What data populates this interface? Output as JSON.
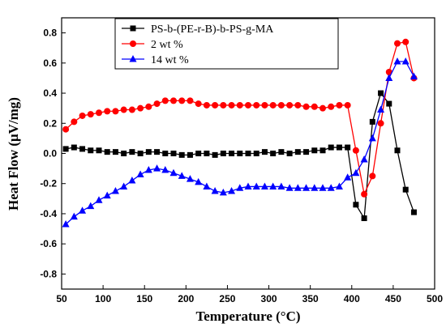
{
  "chart_data": {
    "type": "line",
    "title": "",
    "xlabel": "Temperature (°C)",
    "ylabel": "Heat Flow (μV/mg)",
    "xlim": [
      50,
      500
    ],
    "ylim": [
      -0.9,
      0.9
    ],
    "xticks": [
      "50",
      "100",
      "150",
      "200",
      "250",
      "300",
      "350",
      "400",
      "450",
      "500"
    ],
    "yticks": [
      "0.8",
      "0.6",
      "0.4",
      "0.2",
      "0.0",
      "-0.2",
      "-0.4",
      "-0.6",
      "-0.8"
    ],
    "grid": false,
    "legend_position": "top-left",
    "series": [
      {
        "name": "PS-b-(PE-r-B)-b-PS-g-MA",
        "color": "#000000",
        "marker": "square",
        "points": [
          [
            55,
            0.03
          ],
          [
            65,
            0.04
          ],
          [
            75,
            0.03
          ],
          [
            85,
            0.02
          ],
          [
            95,
            0.02
          ],
          [
            105,
            0.01
          ],
          [
            115,
            0.01
          ],
          [
            125,
            0.0
          ],
          [
            135,
            0.01
          ],
          [
            145,
            0.0
          ],
          [
            155,
            0.01
          ],
          [
            165,
            0.01
          ],
          [
            175,
            0.0
          ],
          [
            185,
            0.0
          ],
          [
            195,
            -0.01
          ],
          [
            205,
            -0.01
          ],
          [
            215,
            0.0
          ],
          [
            225,
            0.0
          ],
          [
            235,
            -0.01
          ],
          [
            245,
            0.0
          ],
          [
            255,
            0.0
          ],
          [
            265,
            0.0
          ],
          [
            275,
            0.0
          ],
          [
            285,
            0.0
          ],
          [
            295,
            0.01
          ],
          [
            305,
            0.0
          ],
          [
            315,
            0.01
          ],
          [
            325,
            0.0
          ],
          [
            335,
            0.01
          ],
          [
            345,
            0.01
          ],
          [
            355,
            0.02
          ],
          [
            365,
            0.02
          ],
          [
            375,
            0.04
          ],
          [
            385,
            0.04
          ],
          [
            395,
            0.04
          ],
          [
            405,
            -0.34
          ],
          [
            415,
            -0.43
          ],
          [
            425,
            0.21
          ],
          [
            435,
            0.4
          ],
          [
            445,
            0.33
          ],
          [
            455,
            0.02
          ],
          [
            465,
            -0.24
          ],
          [
            475,
            -0.39
          ]
        ]
      },
      {
        "name": "2 wt %",
        "color": "#ff0000",
        "marker": "circle",
        "points": [
          [
            55,
            0.16
          ],
          [
            65,
            0.21
          ],
          [
            75,
            0.25
          ],
          [
            85,
            0.26
          ],
          [
            95,
            0.27
          ],
          [
            105,
            0.28
          ],
          [
            115,
            0.28
          ],
          [
            125,
            0.29
          ],
          [
            135,
            0.29
          ],
          [
            145,
            0.3
          ],
          [
            155,
            0.31
          ],
          [
            165,
            0.33
          ],
          [
            175,
            0.35
          ],
          [
            185,
            0.35
          ],
          [
            195,
            0.35
          ],
          [
            205,
            0.35
          ],
          [
            215,
            0.33
          ],
          [
            225,
            0.32
          ],
          [
            235,
            0.32
          ],
          [
            245,
            0.32
          ],
          [
            255,
            0.32
          ],
          [
            265,
            0.32
          ],
          [
            275,
            0.32
          ],
          [
            285,
            0.32
          ],
          [
            295,
            0.32
          ],
          [
            305,
            0.32
          ],
          [
            315,
            0.32
          ],
          [
            325,
            0.32
          ],
          [
            335,
            0.32
          ],
          [
            345,
            0.31
          ],
          [
            355,
            0.31
          ],
          [
            365,
            0.3
          ],
          [
            375,
            0.31
          ],
          [
            385,
            0.32
          ],
          [
            395,
            0.32
          ],
          [
            405,
            0.02
          ],
          [
            415,
            -0.27
          ],
          [
            425,
            -0.15
          ],
          [
            435,
            0.2
          ],
          [
            445,
            0.54
          ],
          [
            455,
            0.73
          ],
          [
            465,
            0.74
          ],
          [
            475,
            0.5
          ]
        ]
      },
      {
        "name": "14 wt %",
        "color": "#0000ff",
        "marker": "triangle",
        "points": [
          [
            55,
            -0.47
          ],
          [
            65,
            -0.42
          ],
          [
            75,
            -0.38
          ],
          [
            85,
            -0.35
          ],
          [
            95,
            -0.31
          ],
          [
            105,
            -0.28
          ],
          [
            115,
            -0.25
          ],
          [
            125,
            -0.22
          ],
          [
            135,
            -0.18
          ],
          [
            145,
            -0.14
          ],
          [
            155,
            -0.11
          ],
          [
            165,
            -0.1
          ],
          [
            175,
            -0.11
          ],
          [
            185,
            -0.13
          ],
          [
            195,
            -0.15
          ],
          [
            205,
            -0.17
          ],
          [
            215,
            -0.19
          ],
          [
            225,
            -0.22
          ],
          [
            235,
            -0.25
          ],
          [
            245,
            -0.26
          ],
          [
            255,
            -0.25
          ],
          [
            265,
            -0.23
          ],
          [
            275,
            -0.22
          ],
          [
            285,
            -0.22
          ],
          [
            295,
            -0.22
          ],
          [
            305,
            -0.22
          ],
          [
            315,
            -0.22
          ],
          [
            325,
            -0.23
          ],
          [
            335,
            -0.23
          ],
          [
            345,
            -0.23
          ],
          [
            355,
            -0.23
          ],
          [
            365,
            -0.23
          ],
          [
            375,
            -0.23
          ],
          [
            385,
            -0.22
          ],
          [
            395,
            -0.16
          ],
          [
            405,
            -0.13
          ],
          [
            415,
            -0.04
          ],
          [
            425,
            0.1
          ],
          [
            435,
            0.29
          ],
          [
            445,
            0.5
          ],
          [
            455,
            0.61
          ],
          [
            465,
            0.61
          ],
          [
            475,
            0.51
          ]
        ]
      }
    ]
  }
}
